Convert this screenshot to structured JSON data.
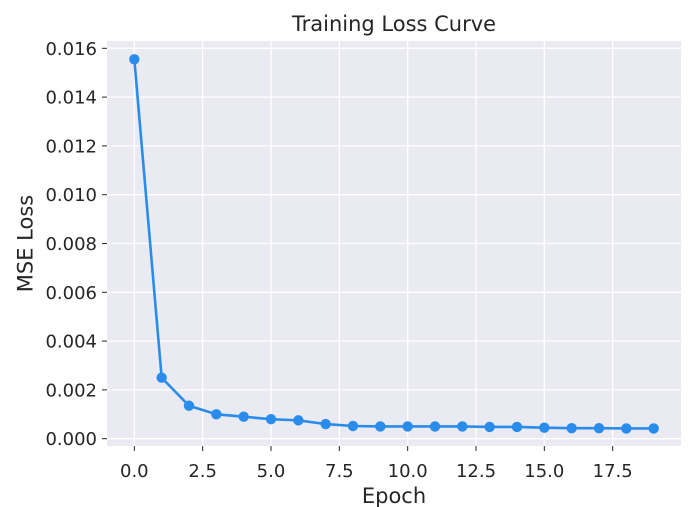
{
  "chart_data": {
    "type": "line",
    "title": "Training Loss Curve",
    "xlabel": "Epoch",
    "ylabel": "MSE Loss",
    "xlim": [
      -1,
      20
    ],
    "ylim": [
      -0.0003,
      0.0163
    ],
    "xticks": [
      0.0,
      2.5,
      5.0,
      7.5,
      10.0,
      12.5,
      15.0,
      17.5
    ],
    "xtick_labels": [
      "0.0",
      "2.5",
      "5.0",
      "7.5",
      "10.0",
      "12.5",
      "15.0",
      "17.5"
    ],
    "yticks": [
      0.0,
      0.002,
      0.004,
      0.006,
      0.008,
      0.01,
      0.012,
      0.014,
      0.016
    ],
    "ytick_labels": [
      "0.000",
      "0.002",
      "0.004",
      "0.006",
      "0.008",
      "0.010",
      "0.012",
      "0.014",
      "0.016"
    ],
    "grid": true,
    "background_color": "#eaeaf2",
    "line_color": "#2a8cea",
    "series": [
      {
        "x": [
          0,
          1,
          2,
          3,
          4,
          5,
          6,
          7,
          8,
          9,
          10,
          11,
          12,
          13,
          14,
          15,
          16,
          17,
          18,
          19
        ],
        "values": [
          0.01555,
          0.0025,
          0.00135,
          0.001,
          0.0009,
          0.0008,
          0.00075,
          0.0006,
          0.00052,
          0.0005,
          0.0005,
          0.0005,
          0.0005,
          0.00048,
          0.00048,
          0.00045,
          0.00043,
          0.00043,
          0.00042,
          0.00042
        ]
      }
    ]
  }
}
